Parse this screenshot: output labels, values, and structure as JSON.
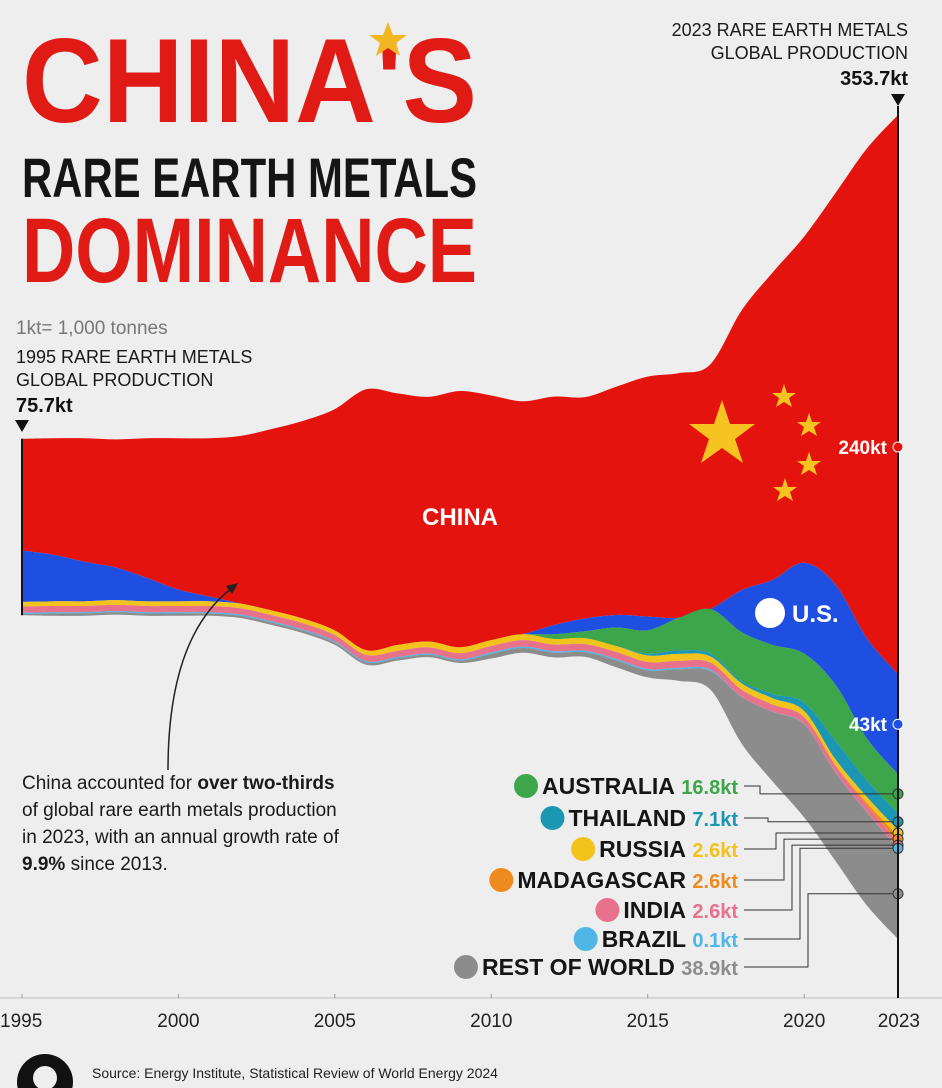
{
  "chart_data": {
    "type": "streamgraph",
    "title_lines": [
      "CHINA'S",
      "RARE EARTH METALS",
      "DOMINANCE"
    ],
    "unit_note": "1kt= 1,000 tonnes",
    "start_note": [
      "1995 RARE EARTH METALS",
      "GLOBAL PRODUCTION"
    ],
    "start_total": {
      "value": 75.7,
      "label": "75.7kt"
    },
    "end_note": [
      "2023 RARE EARTH METALS",
      "GLOBAL PRODUCTION"
    ],
    "end_total": {
      "value": 353.7,
      "label": "353.7kt"
    },
    "callout": [
      "China accounted for ",
      "over two-thirds",
      " of global rare earth metals production in 2023, with an annual growth rate of ",
      "9.9%",
      " since 2013."
    ],
    "source": "Source: Energy Institute, Statistical Review of World Energy 2024",
    "x": [
      1995,
      1996,
      1997,
      1998,
      1999,
      2000,
      2001,
      2002,
      2003,
      2004,
      2005,
      2006,
      2007,
      2008,
      2009,
      2010,
      2011,
      2012,
      2013,
      2014,
      2015,
      2016,
      2017,
      2018,
      2019,
      2020,
      2021,
      2022,
      2023
    ],
    "xlim": [
      1995,
      2023
    ],
    "xticks": [
      1995,
      2000,
      2005,
      2010,
      2015,
      2020,
      2023
    ],
    "series": [
      {
        "name": "CHINA",
        "color": "#e5130d",
        "end_label": "240kt",
        "values": [
          48,
          50,
          53,
          55,
          60,
          65,
          68,
          72,
          78,
          85,
          95,
          112,
          108,
          105,
          110,
          105,
          100,
          98,
          95,
          98,
          103,
          105,
          105,
          120,
          132,
          140,
          168,
          210,
          240
        ]
      },
      {
        "name": "U.S.",
        "color": "#1f4fe0",
        "end_label": "43kt",
        "values": [
          22,
          20,
          17,
          14,
          10,
          5,
          2,
          0,
          0,
          0,
          0,
          0,
          0,
          0,
          0,
          0,
          0,
          4,
          5.5,
          5.4,
          5.9,
          0,
          0,
          18,
          28,
          39,
          43,
          43,
          43
        ]
      },
      {
        "name": "AUSTRALIA",
        "color": "#3da54a",
        "end_label": "16.8kt",
        "values": [
          0,
          0,
          0,
          0,
          0,
          0,
          0,
          0,
          0,
          0,
          0,
          0,
          0,
          0,
          0,
          0,
          0,
          2,
          3,
          8,
          10,
          14,
          19,
          21,
          21,
          21,
          24,
          18,
          16.8
        ]
      },
      {
        "name": "THAILAND",
        "color": "#1b96b3",
        "end_label": "7.1kt",
        "values": [
          0,
          0,
          0,
          0,
          0,
          0,
          0,
          0,
          0,
          0,
          0,
          0,
          0,
          0,
          0,
          0,
          0,
          0,
          0,
          0,
          0.8,
          1.5,
          1.3,
          1,
          1.9,
          3.6,
          8,
          7.1,
          7.1
        ]
      },
      {
        "name": "RUSSIA",
        "color": "#f2c31a",
        "end_label": "2.6kt",
        "values": [
          2,
          2,
          2,
          2,
          2,
          2,
          2,
          2,
          2,
          2,
          2,
          2,
          2.5,
          2.5,
          2.5,
          2.5,
          2.5,
          2.4,
          2.5,
          2.5,
          2.8,
          3,
          2.6,
          2.7,
          2.7,
          2.7,
          2.6,
          2.6,
          2.6
        ]
      },
      {
        "name": "MADAGASCAR",
        "color": "#ee8a1e",
        "end_label": "2.6kt",
        "values": [
          0,
          0,
          0,
          0,
          0,
          0,
          0,
          0,
          0,
          0,
          0,
          0,
          0,
          0,
          0,
          0,
          0,
          0,
          0,
          0,
          0,
          0,
          0,
          0,
          0,
          0,
          0,
          1,
          2.6
        ]
      },
      {
        "name": "INDIA",
        "color": "#e8718c",
        "end_label": "2.6kt",
        "values": [
          2.7,
          2.7,
          2.7,
          2.7,
          2.7,
          2.7,
          2.7,
          2.7,
          2.7,
          2.7,
          2.7,
          2.7,
          2.7,
          2.7,
          2.7,
          2.8,
          2.8,
          2.9,
          2.9,
          3,
          3,
          3,
          3,
          3,
          3,
          2.9,
          2.9,
          2.9,
          2.6
        ]
      },
      {
        "name": "BRAZIL",
        "color": "#4fb6e6",
        "end_label": "0.1kt",
        "values": [
          0.5,
          0.5,
          0.5,
          0.5,
          0.5,
          0.5,
          0.5,
          0.5,
          0.5,
          0.5,
          0.5,
          0.5,
          0.5,
          0.5,
          0.5,
          0.6,
          0.6,
          0.6,
          0.6,
          0.6,
          0.6,
          0.6,
          0.6,
          0.1,
          0.1,
          0.1,
          0.1,
          0.1,
          0.1
        ]
      },
      {
        "name": "REST OF WORLD",
        "color": "#8c8c8c",
        "end_label": "38.9kt",
        "values": [
          0.5,
          1,
          1,
          1,
          1,
          1,
          1,
          1,
          1,
          1,
          1,
          1,
          1,
          1,
          1,
          2,
          2,
          2,
          2,
          3,
          3,
          5,
          8,
          20,
          30,
          40,
          38,
          40,
          38.9
        ]
      }
    ]
  }
}
